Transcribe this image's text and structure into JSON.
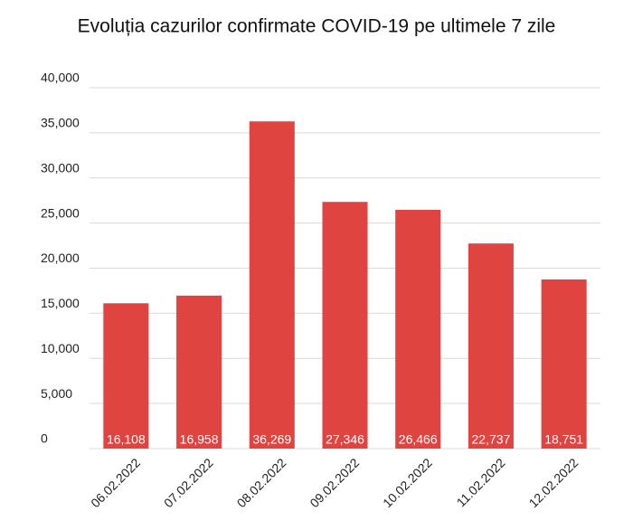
{
  "chart_data": {
    "type": "bar",
    "title": "Evoluția cazurilor confirmate COVID-19 pe ultimele 7 zile",
    "categories": [
      "06.02.2022",
      "07.02.2022",
      "08.02.2022",
      "09.02.2022",
      "10.02.2022",
      "11.02.2022",
      "12.02.2022"
    ],
    "values": [
      16108,
      16958,
      36269,
      27346,
      26466,
      22737,
      18751
    ],
    "value_labels": [
      "16,108",
      "16,958",
      "36,269",
      "27,346",
      "26,466",
      "22,737",
      "18,751"
    ],
    "color": "#e04441",
    "ylim": [
      0,
      40000
    ],
    "yticks": [
      0,
      {
        "value": 5000,
        "label": "5,000"
      },
      {
        "value": 10000,
        "label": "10,000"
      },
      {
        "value": 15000,
        "label": "15,000"
      },
      {
        "value": 20000,
        "label": "20,000"
      },
      {
        "value": 25000,
        "label": "25,000"
      },
      {
        "value": 30000,
        "label": "30,000"
      },
      {
        "value": 35000,
        "label": "35,000"
      },
      {
        "value": 40000,
        "label": "40,000"
      }
    ],
    "grid": true
  }
}
